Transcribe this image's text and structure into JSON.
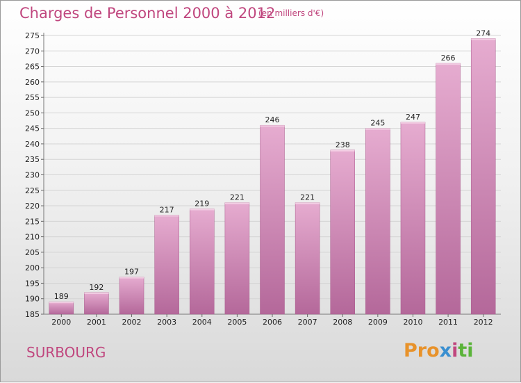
{
  "title": "Charges de Personnel 2000 à 2012",
  "subtitle": "(en milliers d'€)",
  "city": "SURBOURG",
  "logo": {
    "parts": [
      "Pro",
      "x",
      "i",
      "ti"
    ],
    "colors": [
      "#e8922a",
      "#3a8fd0",
      "#c0467e",
      "#5bb43a"
    ]
  },
  "colors": {
    "bar": "#cf7fb0",
    "bar_light": "#e2a8cc",
    "bar_dark": "#b8649a",
    "accent": "#c0467e"
  },
  "chart_data": {
    "type": "bar",
    "categories": [
      "2000",
      "2001",
      "2002",
      "2003",
      "2004",
      "2005",
      "2006",
      "2007",
      "2008",
      "2009",
      "2010",
      "2011",
      "2012"
    ],
    "values": [
      189,
      192,
      197,
      217,
      219,
      221,
      246,
      221,
      238,
      245,
      247,
      266,
      274
    ],
    "ylim": [
      185,
      275
    ],
    "yticks": [
      185,
      190,
      195,
      200,
      205,
      210,
      215,
      220,
      225,
      230,
      235,
      240,
      245,
      250,
      255,
      260,
      265,
      270,
      275
    ],
    "grid": true,
    "legend": "none"
  }
}
